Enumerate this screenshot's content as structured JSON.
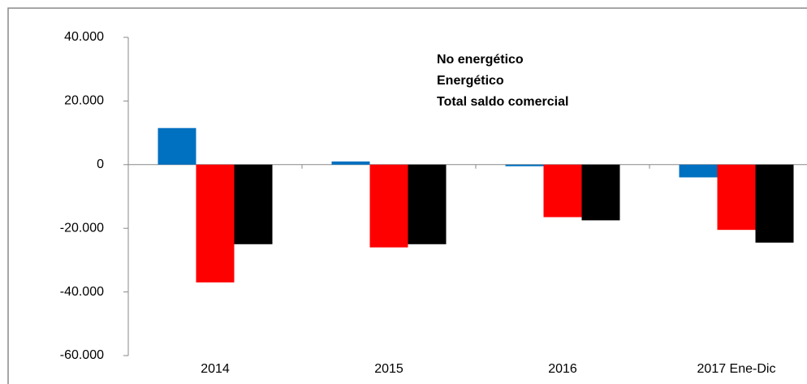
{
  "chart_data": {
    "type": "bar",
    "categories": [
      "2014",
      "2015",
      "2016",
      "2017 Ene-Dic"
    ],
    "series": [
      {
        "name": "No energético",
        "color": "#0070c0",
        "values": [
          11500,
          1000,
          -500,
          -4000
        ]
      },
      {
        "name": "Energético",
        "color": "#ff0000",
        "values": [
          -37000,
          -26000,
          -16500,
          -20500
        ]
      },
      {
        "name": "Total saldo comercial",
        "color": "#000000",
        "values": [
          -25000,
          -25000,
          -17500,
          -24500
        ]
      }
    ],
    "ylim": [
      -60000,
      40000
    ],
    "yticks": [
      {
        "value": -60000,
        "label": "-60.000"
      },
      {
        "value": -40000,
        "label": "-40.000"
      },
      {
        "value": -20000,
        "label": "-20.000"
      },
      0,
      {
        "value": 20000,
        "label": "20.000"
      },
      {
        "value": 40000,
        "label": "40.000"
      }
    ]
  }
}
